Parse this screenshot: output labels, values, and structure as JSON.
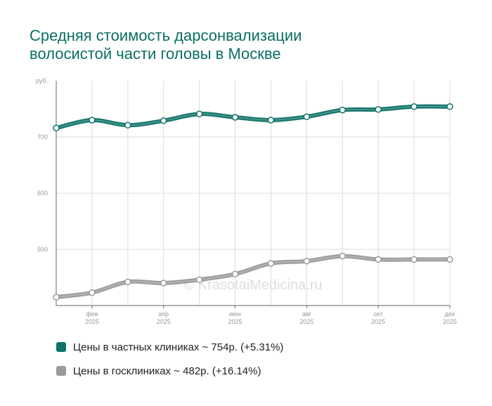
{
  "title": {
    "line1": "Средняя стоимость дарсонвализации",
    "line2": "волосистой части головы в Москве"
  },
  "watermark": "© KrasotaiMedicina.ru",
  "chart_data": {
    "type": "line",
    "title": "Средняя стоимость дарсонвализации волосистой части головы в Москве",
    "ylabel": "руб.",
    "xlabel": "",
    "ylim": [
      400,
      800
    ],
    "y_ticks": [
      500,
      600,
      700
    ],
    "y_unit_label": "руб.",
    "x_ticks": [
      {
        "index": 1,
        "month": "фев",
        "year": "2025"
      },
      {
        "index": 3,
        "month": "апр",
        "year": "2025"
      },
      {
        "index": 5,
        "month": "июн",
        "year": "2025"
      },
      {
        "index": 7,
        "month": "авг",
        "year": "2025"
      },
      {
        "index": 9,
        "month": "окт",
        "year": "2025"
      },
      {
        "index": 11,
        "month": "дек",
        "year": "2025"
      }
    ],
    "x_count": 12,
    "grid": true,
    "series": [
      {
        "name": "Цены в частных клиниках",
        "legend": "Цены в частных клиниках ~ 754р. (+5.31%)",
        "color": "#0d7267",
        "values": [
          716,
          730,
          721,
          729,
          741,
          735,
          730,
          736,
          748,
          749,
          754,
          754
        ]
      },
      {
        "name": "Цены в госклиниках",
        "legend": "Цены в госклиниках ~ 482р. (+16.14%)",
        "color": "#9a9a9a",
        "values": [
          415,
          423,
          442,
          440,
          446,
          456,
          475,
          479,
          488,
          482,
          482,
          482
        ]
      }
    ]
  }
}
